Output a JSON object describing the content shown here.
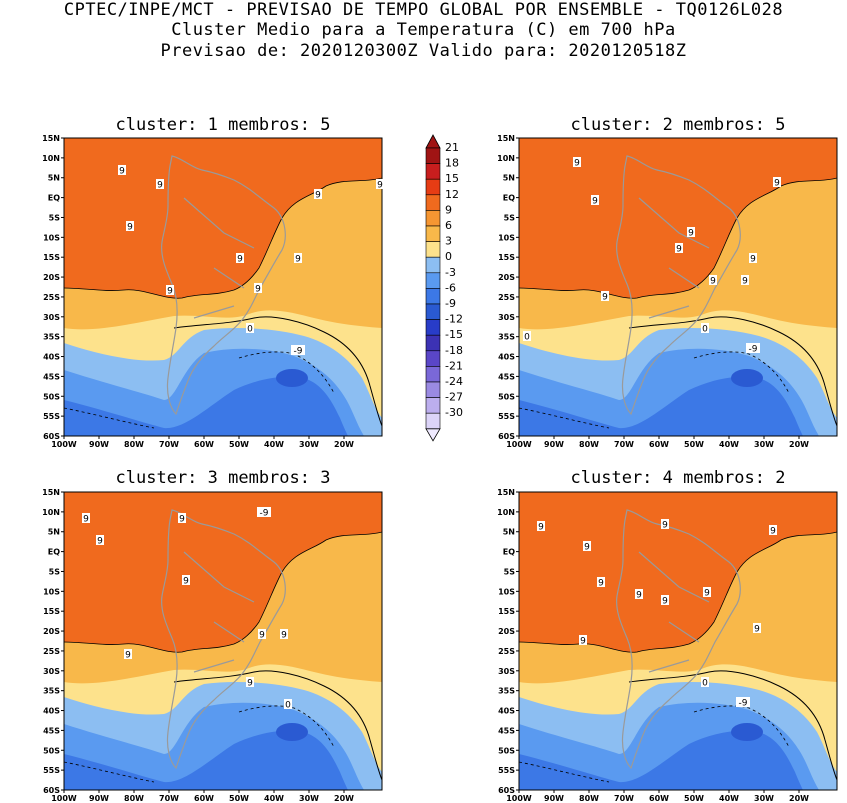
{
  "header": {
    "line1": "CPTEC/INPE/MCT - PREVISAO DE TEMPO GLOBAL POR ENSEMBLE - TQ0126L028",
    "line2": "Cluster Medio para a Temperatura (C) em 700 hPa",
    "line3": "Previsao de: 2020120300Z   Valido para: 2020120518Z"
  },
  "panels": [
    {
      "title": "cluster: 1   membros: 5",
      "labels": [
        "9",
        "9",
        "9",
        "9",
        "9",
        "9",
        "9",
        "9",
        "9",
        "0",
        "-9"
      ]
    },
    {
      "title": "cluster: 2   membros: 5",
      "labels": [
        "9",
        "9",
        "9",
        "9",
        "9",
        "9",
        "9",
        "9",
        "9",
        "0",
        "-9",
        "0"
      ]
    },
    {
      "title": "cluster: 3   membros: 3",
      "labels": [
        "9",
        "9",
        "9",
        "9",
        "9",
        "9",
        "9",
        "9",
        "0",
        "-9"
      ]
    },
    {
      "title": "cluster: 4   membros: 2",
      "labels": [
        "9",
        "9",
        "9",
        "9",
        "9",
        "9",
        "9",
        "9",
        "9",
        "9",
        "0",
        "-9"
      ]
    }
  ],
  "lat_ticks": [
    "15N",
    "10N",
    "5N",
    "EQ",
    "5S",
    "10S",
    "15S",
    "20S",
    "25S",
    "30S",
    "35S",
    "40S",
    "45S",
    "50S",
    "55S",
    "60S"
  ],
  "lon_ticks": [
    "100W",
    "90W",
    "80W",
    "70W",
    "60W",
    "50W",
    "40W",
    "30W",
    "20W"
  ],
  "colorbar": {
    "labels": [
      "21",
      "18",
      "15",
      "12",
      "9",
      "6",
      "3",
      "0",
      "-3",
      "-6",
      "-9",
      "-12",
      "-15",
      "-18",
      "-21",
      "-24",
      "-27",
      "-30"
    ],
    "colors": [
      "#a01414",
      "#c81e1e",
      "#e63c14",
      "#f06a1e",
      "#f59632",
      "#f8b84a",
      "#fde28c",
      "#8cbef2",
      "#5a9af0",
      "#3c78e6",
      "#2a5ad2",
      "#283cc8",
      "#3c32b4",
      "#5a46c8",
      "#7a68d8",
      "#9a8ae2",
      "#bcaeee",
      "#dcd4f8"
    ]
  }
}
